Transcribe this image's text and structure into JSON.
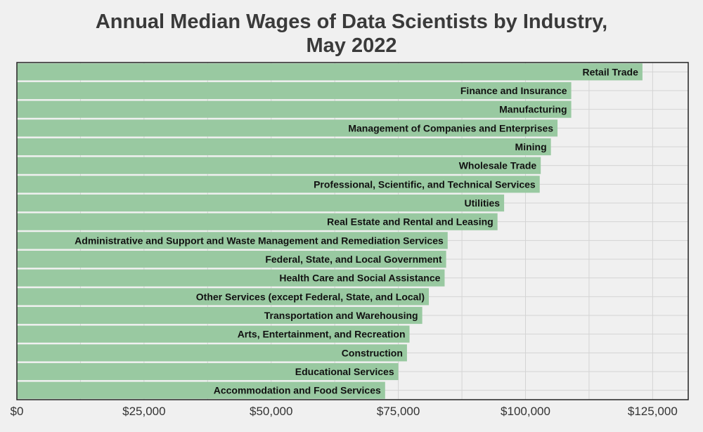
{
  "chart_data": {
    "type": "bar",
    "orientation": "horizontal",
    "title_lines": [
      "Annual Median Wages of Data Scientists by Industry,",
      "May 2022"
    ],
    "xlabel": "",
    "ylabel": "",
    "xlim": [
      0,
      132000
    ],
    "x_ticks": [
      0,
      25000,
      50000,
      75000,
      100000,
      125000
    ],
    "x_tick_labels": [
      "$0",
      "$25,000",
      "$50,000",
      "$75,000",
      "$100,000",
      "$125,000"
    ],
    "grid": true,
    "bar_color": "#99c9a1",
    "categories": [
      "Retail Trade",
      "Finance and Insurance",
      "Manufacturing",
      "Management of Companies and Enterprises",
      "Mining",
      "Wholesale Trade",
      "Professional, Scientific, and Technical Services",
      "Utilities",
      "Real Estate and Rental and Leasing",
      "Administrative and Support and Waste Management and Remediation Services",
      "Federal, State, and Local Government",
      "Health Care and Social Assistance",
      "Other Services (except Federal, State, and Local)",
      "Transportation and Warehousing",
      "Arts, Entertainment, and Recreation",
      "Construction",
      "Educational Services",
      "Accommodation and Food Services"
    ],
    "values": [
      123000,
      109000,
      109000,
      106300,
      105000,
      103000,
      102800,
      95800,
      94500,
      84700,
      84400,
      84100,
      81000,
      79700,
      77200,
      76700,
      75000,
      72400
    ]
  }
}
